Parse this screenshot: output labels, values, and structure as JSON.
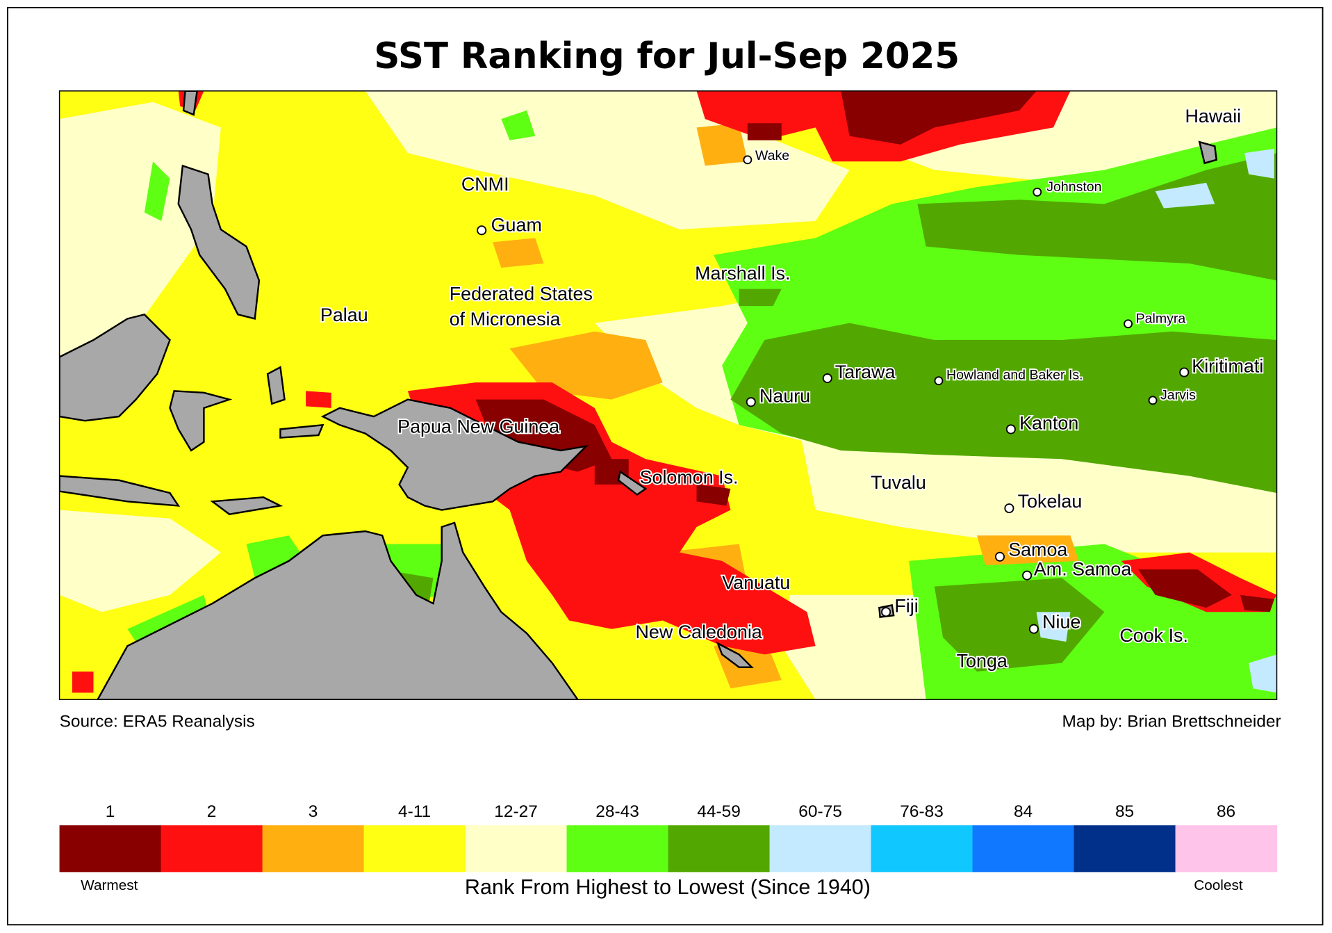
{
  "title": "SST Ranking for Jul-Sep 2025",
  "source": "Source: ERA5 Reanalysis",
  "credit": "Map by: Brian Brettschneider",
  "colors": {
    "rank_1": "#880000",
    "rank_2": "#ff1010",
    "rank_3": "#ffb010",
    "rank_4_11": "#ffff14",
    "rank_12_27": "#ffffc8",
    "rank_28_43": "#5eff12",
    "rank_44_59": "#52a800",
    "rank_60_75": "#c4eaff",
    "rank_76_83": "#10c8ff",
    "rank_84": "#1078ff",
    "rank_85": "#00308a",
    "rank_86": "#ffc4ea",
    "land": "#a8a8a8"
  },
  "places": {
    "hawaii": "Hawaii",
    "wake": "Wake",
    "cnmi": "CNMI",
    "guam": "Guam",
    "johnston": "Johnston",
    "marshall": "Marshall Is.",
    "fsm_1": "Federated States",
    "fsm_2": "of Micronesia",
    "palau": "Palau",
    "palmyra": "Palmyra",
    "tarawa": "Tarawa",
    "howland": "Howland and Baker Is.",
    "kiritimati": "Kiritimati",
    "jarvis": "Jarvis",
    "nauru": "Nauru",
    "png": "Papua New Guinea",
    "kanton": "Kanton",
    "solomon": "Solomon Is.",
    "tuvalu": "Tuvalu",
    "tokelau": "Tokelau",
    "samoa": "Samoa",
    "am_samoa": "Am. Samoa",
    "vanuatu": "Vanuatu",
    "fiji": "Fiji",
    "niue": "Niue",
    "new_caledonia": "New Caledonia",
    "cook": "Cook Is.",
    "tonga": "Tonga"
  },
  "legend": {
    "title": "Rank From Highest to Lowest (Since 1940)",
    "warmest": "Warmest",
    "coolest": "Coolest",
    "bins": [
      {
        "label": "1",
        "color": "#880000"
      },
      {
        "label": "2",
        "color": "#ff1010"
      },
      {
        "label": "3",
        "color": "#ffb010"
      },
      {
        "label": "4-11",
        "color": "#ffff14"
      },
      {
        "label": "12-27",
        "color": "#ffffc8"
      },
      {
        "label": "28-43",
        "color": "#5eff12"
      },
      {
        "label": "44-59",
        "color": "#52a800"
      },
      {
        "label": "60-75",
        "color": "#c4eaff"
      },
      {
        "label": "76-83",
        "color": "#10c8ff"
      },
      {
        "label": "84",
        "color": "#1078ff"
      },
      {
        "label": "85",
        "color": "#00308a"
      },
      {
        "label": "86",
        "color": "#ffc4ea"
      }
    ]
  }
}
